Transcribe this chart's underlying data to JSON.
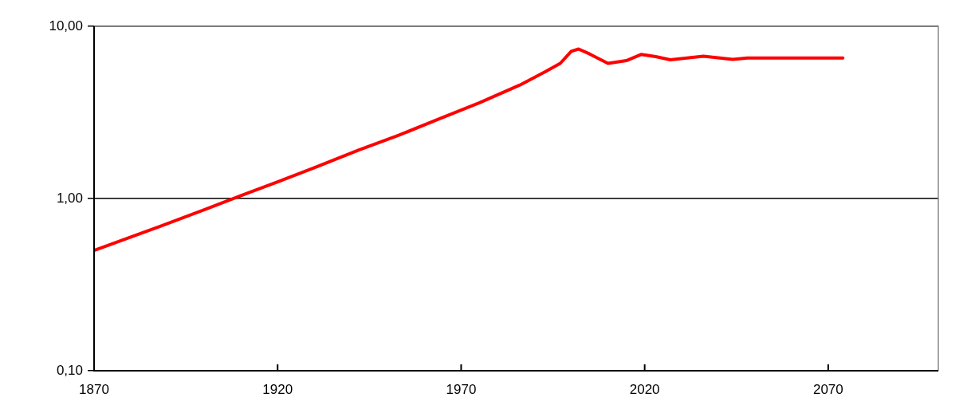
{
  "chart_data": {
    "type": "line",
    "x": [
      1870,
      1888,
      1900,
      1910,
      1920,
      1930,
      1942,
      1953,
      1964,
      1975,
      1986,
      1993,
      1997,
      2000,
      2002,
      2005,
      2010,
      2015,
      2019,
      2023,
      2027,
      2036,
      2044,
      2048,
      2074
    ],
    "series": [
      {
        "color": "#ff0000",
        "values": [
          0.5,
          0.69,
          0.86,
          1.04,
          1.25,
          1.51,
          1.91,
          2.33,
          2.9,
          3.6,
          4.56,
          5.46,
          6.09,
          7.16,
          7.38,
          6.91,
          6.09,
          6.32,
          6.86,
          6.67,
          6.39,
          6.71,
          6.43,
          6.55,
          6.55
        ]
      }
    ],
    "xlim": [
      1870,
      2100
    ],
    "xticks": [
      1870,
      1920,
      1970,
      2020,
      2070
    ],
    "ylim": [
      0.1,
      10
    ],
    "yticks": [
      {
        "value": 0.1,
        "label": "0,10"
      },
      {
        "value": 1,
        "label": "1,00"
      },
      {
        "value": 10,
        "label": "10,00"
      }
    ],
    "log": "y",
    "grid": "y",
    "legend": false,
    "marker": "none",
    "line_style": "solid"
  }
}
